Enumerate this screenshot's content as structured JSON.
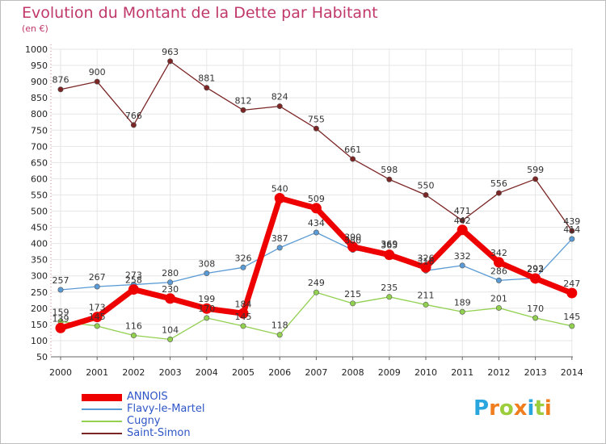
{
  "header": {
    "title": "Evolution du Montant de la Dette par Habitant",
    "subtitle": "(en €)"
  },
  "logo": {
    "letters": [
      "P",
      "r",
      "o",
      "x",
      "i",
      "t",
      "i"
    ],
    "colors": [
      "#2aa6de",
      "#f07d1e",
      "#9ccd3c",
      "#f07d1e",
      "#2aa6de",
      "#9ccd3c",
      "#f07d1e"
    ]
  },
  "chart_data": {
    "type": "line",
    "x": [
      "2000",
      "2001",
      "2002",
      "2003",
      "2004",
      "2005",
      "2006",
      "2007",
      "2008",
      "2009",
      "2010",
      "2011",
      "2012",
      "2013",
      "2014"
    ],
    "ylim": [
      50,
      1000
    ],
    "yticks": [
      50,
      100,
      150,
      200,
      250,
      300,
      350,
      400,
      450,
      500,
      550,
      600,
      650,
      700,
      750,
      800,
      850,
      900,
      950,
      1000
    ],
    "grid": true,
    "legend_position": "bottom-left",
    "series": [
      {
        "name": "ANNOIS",
        "color": "#ee0000",
        "values": [
          139,
          173,
          258,
          230,
          199,
          184,
          540,
          509,
          390,
          365,
          326,
          442,
          342,
          292,
          247
        ]
      },
      {
        "name": "Flavy-le-Martel",
        "color": "#5b9bd5",
        "values": [
          257,
          267,
          273,
          280,
          308,
          326,
          387,
          434,
          380,
          369,
          316,
          332,
          286,
          293,
          414
        ]
      },
      {
        "name": "Cugny",
        "color": "#92d050",
        "values": [
          159,
          145,
          116,
          104,
          170,
          145,
          118,
          249,
          215,
          235,
          211,
          189,
          201,
          170,
          145
        ]
      },
      {
        "name": "Saint-Simon",
        "color": "#7b2525",
        "values": [
          876,
          900,
          766,
          963,
          881,
          812,
          824,
          755,
          661,
          598,
          550,
          471,
          556,
          599,
          439
        ]
      }
    ]
  }
}
